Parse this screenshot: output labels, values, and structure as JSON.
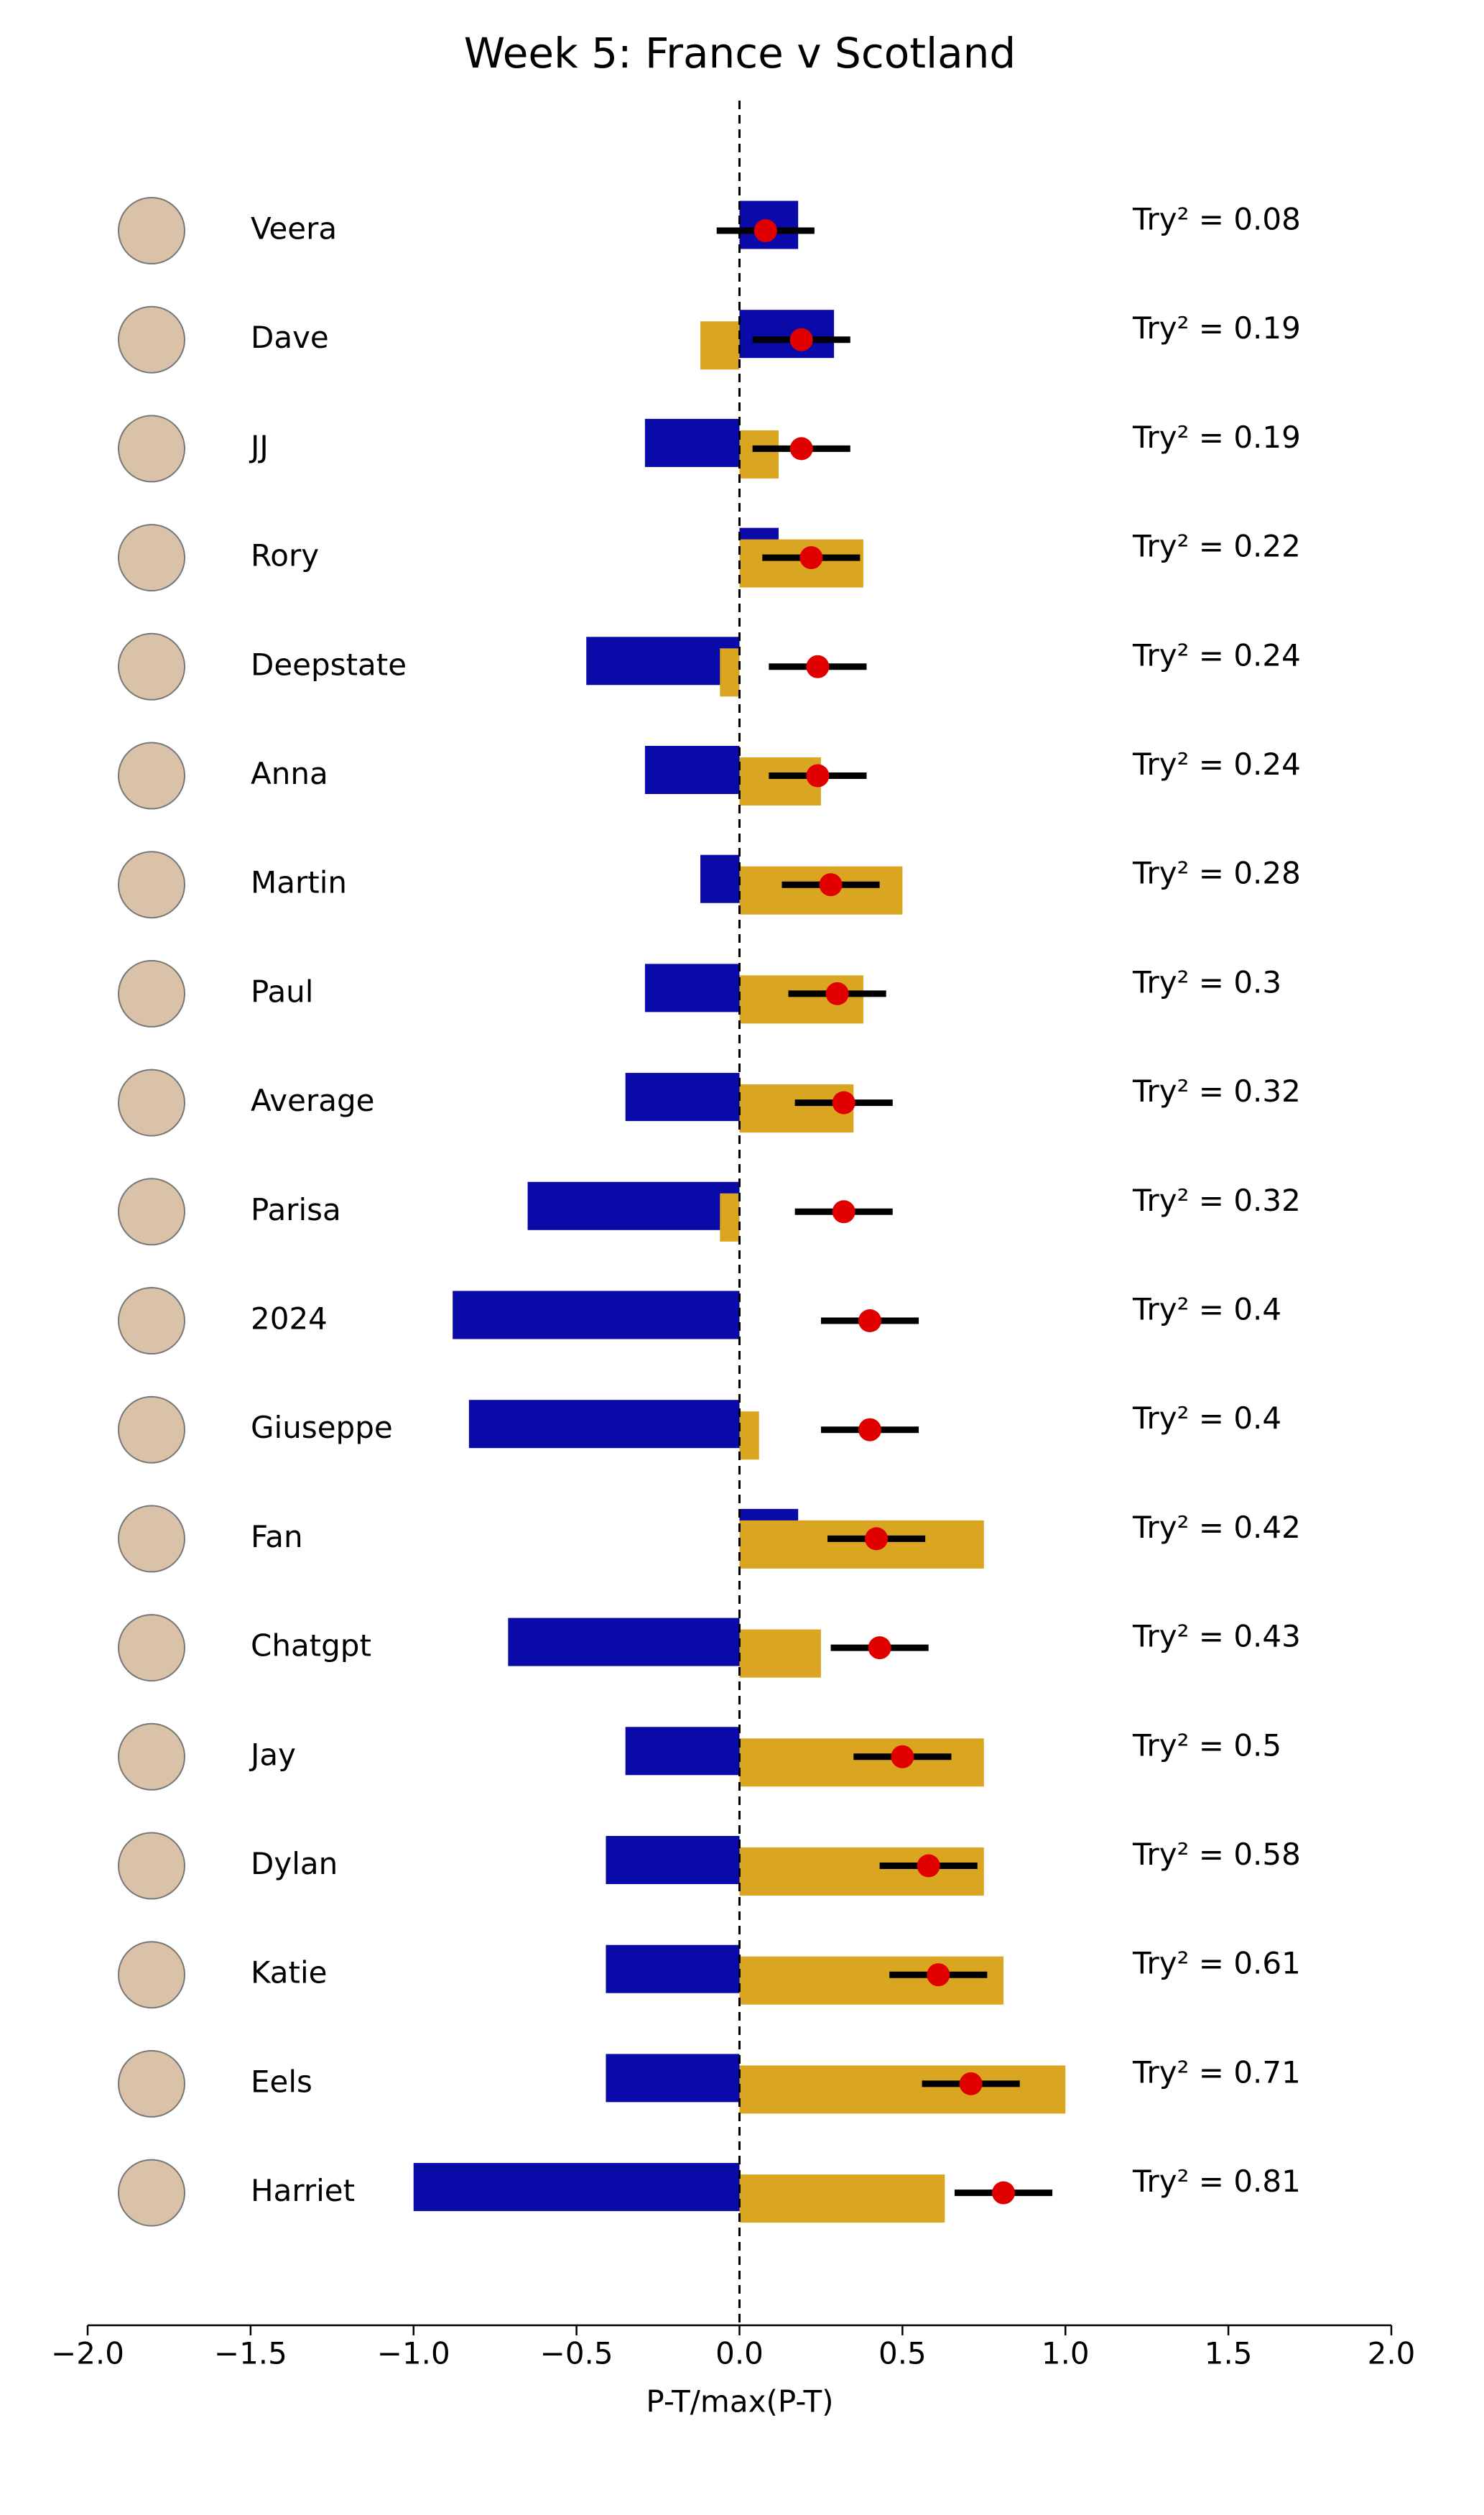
{
  "chart_data": {
    "type": "bar",
    "title": "Week 5: France v Scotland",
    "xlabel": "P-T/max(P-T)",
    "categories": [
      "Veera",
      "Dave",
      "JJ",
      "Rory",
      "Deepstate",
      "Anna",
      "Martin",
      "Paul",
      "Average",
      "Parisa",
      "2024",
      "Giuseppe",
      "Fan",
      "Chatgpt",
      "Jay",
      "Dylan",
      "Katie",
      "Eels",
      "Harriet"
    ],
    "series": [
      {
        "color": "#0a0aa8",
        "values": [
          0.18,
          0.29,
          -0.29,
          0.12,
          -0.47,
          -0.29,
          -0.12,
          -0.29,
          -0.35,
          -0.65,
          -0.88,
          -0.83,
          0.18,
          -0.71,
          -0.35,
          -0.41,
          -0.41,
          -0.41,
          -1.0
        ]
      },
      {
        "color": "#daa520",
        "values": [
          0,
          -0.12,
          0.12,
          0.38,
          -0.06,
          0.25,
          0.5,
          0.38,
          0.35,
          -0.06,
          0,
          0.06,
          0.75,
          0.25,
          0.75,
          0.75,
          0.81,
          1.0,
          0.63
        ]
      }
    ],
    "points": {
      "color": "#e00000",
      "errors": [
        0.15,
        0.15,
        0.15,
        0.15,
        0.15,
        0.15,
        0.15,
        0.15,
        0.15,
        0.15,
        0.15,
        0.15,
        0.15,
        0.15,
        0.15,
        0.15,
        0.15,
        0.15,
        0.15
      ],
      "values": [
        0.08,
        0.19,
        0.19,
        0.22,
        0.24,
        0.24,
        0.28,
        0.3,
        0.32,
        0.32,
        0.4,
        0.4,
        0.42,
        0.43,
        0.5,
        0.58,
        0.61,
        0.71,
        0.81
      ],
      "value_labels": [
        "Try² = 0.08",
        "Try² = 0.19",
        "Try² = 0.19",
        "Try² = 0.22",
        "Try² = 0.24",
        "Try² = 0.24",
        "Try² = 0.28",
        "Try² = 0.3",
        "Try² = 0.32",
        "Try² = 0.32",
        "Try² = 0.4",
        "Try² = 0.4",
        "Try² = 0.42",
        "Try² = 0.43",
        "Try² = 0.5",
        "Try² = 0.58",
        "Try² = 0.61",
        "Try² = 0.71",
        "Try² = 0.81"
      ]
    },
    "xlim": [
      -2,
      2
    ],
    "xticks": [
      {
        "value": -2,
        "label": "−2.0"
      },
      {
        "value": -1.5,
        "label": "−1.5"
      },
      {
        "value": -1,
        "label": "−1.0"
      },
      {
        "value": -0.5,
        "label": "−0.5"
      },
      {
        "value": 0,
        "label": "0.0"
      },
      0.5,
      {
        "value": 1,
        "label": "1.0"
      },
      1.5,
      {
        "value": 2,
        "label": "2.0"
      }
    ],
    "zero_line": true
  }
}
